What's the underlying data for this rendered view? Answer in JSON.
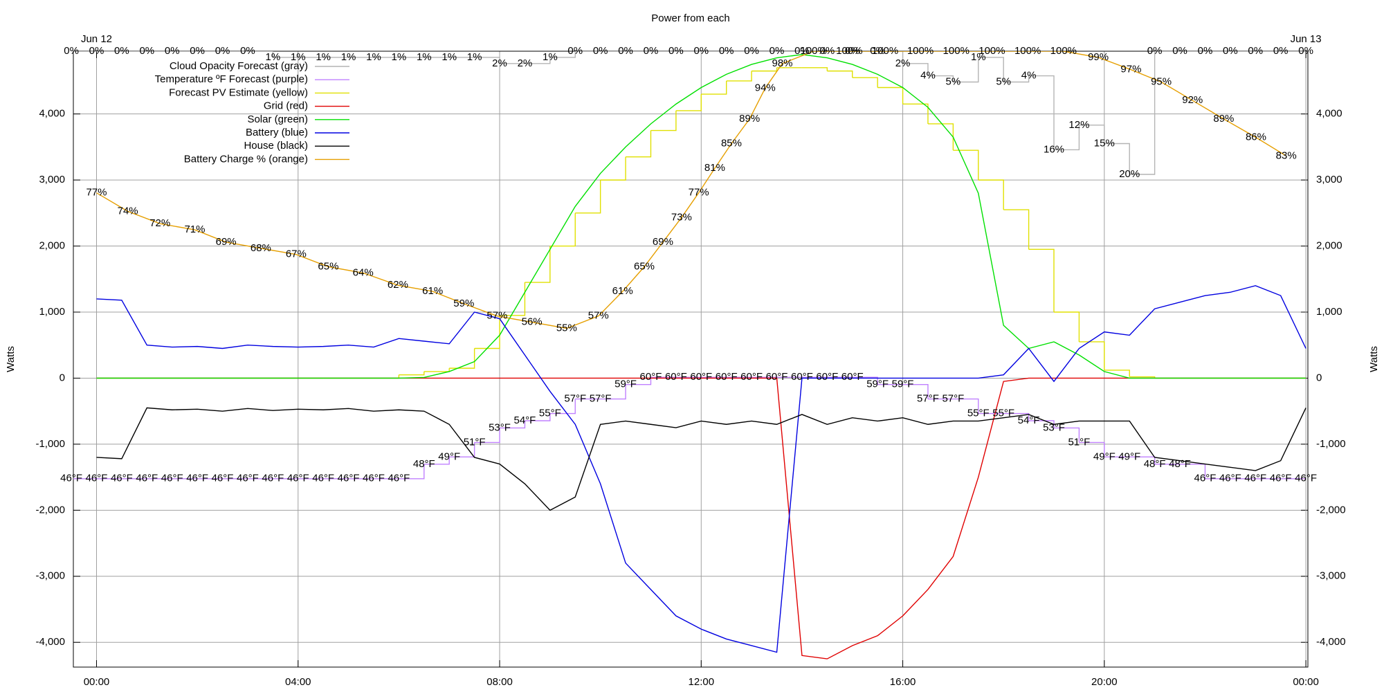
{
  "chart_data": {
    "type": "line",
    "title": "Power from each",
    "y_label": "Watts",
    "y2_label": "Watts",
    "xlim": [
      -0.46,
      24.04
    ],
    "xticks": [
      {
        "value": 0,
        "label": "00:00"
      },
      {
        "value": 4,
        "label": "04:00"
      },
      {
        "value": 8,
        "label": "08:00"
      },
      {
        "value": 12,
        "label": "12:00"
      },
      {
        "value": 16,
        "label": "16:00"
      },
      {
        "value": 20,
        "label": "20:00"
      },
      {
        "value": 24,
        "label": "00:00"
      }
    ],
    "x2ticks": [
      {
        "value": 0,
        "label": "Jun 12"
      },
      {
        "value": 24,
        "label": "Jun 13"
      }
    ],
    "ylim": [
      -4375,
      4950
    ],
    "yticks": [
      {
        "value": -4000,
        "label": "-4,000"
      },
      {
        "value": -3000,
        "label": "-3,000"
      },
      {
        "value": -2000,
        "label": "-2,000"
      },
      {
        "value": -1000,
        "label": "-1,000"
      },
      0,
      {
        "value": 1000,
        "label": "1,000"
      },
      {
        "value": 2000,
        "label": "2,000"
      },
      {
        "value": 3000,
        "label": "3,000"
      },
      {
        "value": 4000,
        "label": "4,000"
      }
    ],
    "grid": true,
    "legend": "top left",
    "series": [
      {
        "name": "Cloud Opacity Forecast (gray)",
        "color": "#b4b4b4",
        "label_color": "#b4b4b4",
        "step": true,
        "ylim": [
          100,
          0
        ],
        "x": [
          -0.5,
          0,
          0.5,
          1,
          1.5,
          2,
          2.5,
          3,
          3.5,
          4,
          4.5,
          5,
          5.5,
          6,
          6.5,
          7,
          7.5,
          8,
          8.5,
          9,
          9.5,
          10,
          10.5,
          11,
          11.5,
          12,
          12.5,
          13,
          13.5,
          14,
          14.5,
          15,
          15.5,
          16,
          16.5,
          17,
          17.5,
          18,
          18.5,
          19,
          19.5,
          20,
          20.5,
          21,
          21.5,
          22,
          22.5,
          23,
          23.5,
          24
        ],
        "values": [
          0,
          0,
          0,
          0,
          0,
          0,
          0,
          0,
          1,
          1,
          1,
          1,
          1,
          1,
          1,
          1,
          1,
          2,
          2,
          1,
          0,
          0,
          0,
          0,
          0,
          0,
          0,
          0,
          0,
          0,
          0,
          0,
          0,
          2,
          4,
          5,
          1,
          5,
          4,
          16,
          12,
          15,
          20,
          0,
          0,
          0,
          0,
          0,
          0,
          0
        ],
        "value_labels": [
          "0%",
          "0%",
          "0%",
          "0%",
          "0%",
          "0%",
          "0%",
          "0%",
          "1%",
          "1%",
          "1%",
          "1%",
          "1%",
          "1%",
          "1%",
          "1%",
          "1%",
          "2%",
          "2%",
          "1%",
          "0%",
          "0%",
          "0%",
          "0%",
          "0%",
          "0%",
          "0%",
          "0%",
          "0%",
          "0%",
          "0%",
          "0%",
          "0%",
          "2%",
          "4%",
          "5%",
          "1%",
          "5%",
          "4%",
          "16%",
          "12%",
          "15%",
          "20%",
          "0%",
          "0%",
          "0%",
          "0%",
          "0%",
          "0%",
          "0%"
        ]
      },
      {
        "name": "Temperature ºF Forecast (purple)",
        "color": "#c080ff",
        "label_color": "#c080ff",
        "step": true,
        "ylim": [
          20,
          105
        ],
        "x": [
          -0.5,
          0,
          0.5,
          1,
          1.5,
          2,
          2.5,
          3,
          3.5,
          4,
          4.5,
          5,
          5.5,
          6,
          6.5,
          7,
          7.5,
          8,
          8.5,
          9,
          9.5,
          10,
          10.5,
          11,
          11.5,
          12,
          12.5,
          13,
          13.5,
          14,
          14.5,
          15,
          15.5,
          16,
          16.5,
          17,
          17.5,
          18,
          18.5,
          19,
          19.5,
          20,
          20.5,
          21,
          21.5,
          22,
          22.5,
          23,
          23.5,
          24
        ],
        "values": [
          46,
          46,
          46,
          46,
          46,
          46,
          46,
          46,
          46,
          46,
          46,
          46,
          46,
          46,
          48,
          49,
          51,
          53,
          54,
          55,
          57,
          57,
          59,
          60,
          60,
          60,
          60,
          60,
          60,
          60,
          60,
          60,
          59,
          59,
          57,
          57,
          55,
          55,
          54,
          53,
          51,
          49,
          49,
          48,
          48,
          46,
          46,
          46,
          46,
          46
        ],
        "value_labels": [
          "46°F",
          "46°F",
          "46°F",
          "46°F",
          "46°F",
          "46°F",
          "46°F",
          "46°F",
          "46°F",
          "46°F",
          "46°F",
          "46°F",
          "46°F",
          "46°F",
          "48°F",
          "49°F",
          "51°F",
          "53°F",
          "54°F",
          "55°F",
          "57°F",
          "57°F",
          "59°F",
          "60°F",
          "60°F",
          "60°F",
          "60°F",
          "60°F",
          "60°F",
          "60°F",
          "60°F",
          "60°F",
          "59°F",
          "59°F",
          "57°F",
          "57°F",
          "55°F",
          "55°F",
          "54°F",
          "53°F",
          "51°F",
          "49°F",
          "49°F",
          "48°F",
          "48°F",
          "46°F",
          "46°F",
          "46°F",
          "46°F",
          "46°F"
        ]
      },
      {
        "name": "Forecast PV Estimate (yellow)",
        "color": "#e0e000",
        "step": true,
        "x": [
          0,
          0.5,
          1,
          1.5,
          2,
          2.5,
          3,
          3.5,
          4,
          4.5,
          5,
          5.5,
          6,
          6.5,
          7,
          7.5,
          8,
          8.5,
          9,
          9.5,
          10,
          10.5,
          11,
          11.5,
          12,
          12.5,
          13,
          13.5,
          14,
          14.5,
          15,
          15.5,
          16,
          16.5,
          17,
          17.5,
          18,
          18.5,
          19,
          19.5,
          20,
          20.5,
          21,
          21.5,
          22,
          22.5,
          23,
          23.5,
          24
        ],
        "values": [
          0,
          0,
          0,
          0,
          0,
          0,
          0,
          0,
          0,
          0,
          0,
          0,
          50,
          100,
          150,
          450,
          950,
          1450,
          2000,
          2500,
          3000,
          3350,
          3750,
          4050,
          4300,
          4500,
          4650,
          4700,
          4700,
          4650,
          4550,
          4400,
          4150,
          3850,
          3450,
          3000,
          2550,
          1950,
          1000,
          550,
          120,
          20,
          0,
          0,
          0,
          0,
          0,
          0,
          0
        ]
      },
      {
        "name": "Grid (red)",
        "color": "#e00000",
        "x": [
          0,
          0.5,
          1,
          1.5,
          2,
          2.5,
          3,
          3.5,
          4,
          4.5,
          5,
          5.5,
          6,
          6.5,
          7,
          7.5,
          8,
          8.5,
          9,
          9.5,
          10,
          10.5,
          11,
          11.5,
          12,
          12.5,
          13,
          13.5,
          14,
          14.5,
          15,
          15.5,
          16,
          16.5,
          17,
          17.5,
          18,
          18.5,
          19,
          19.5,
          20,
          20.5,
          21,
          21.5,
          22,
          22.5,
          23,
          23.5,
          24
        ],
        "values": [
          0,
          0,
          0,
          0,
          0,
          0,
          0,
          0,
          0,
          0,
          0,
          0,
          0,
          0,
          0,
          0,
          0,
          0,
          0,
          0,
          0,
          0,
          0,
          0,
          0,
          0,
          0,
          0,
          -4200,
          -4250,
          -4050,
          -3900,
          -3600,
          -3200,
          -2700,
          -1500,
          -50,
          0,
          0,
          0,
          0,
          0,
          0,
          0,
          0,
          0,
          0,
          0,
          0
        ]
      },
      {
        "name": "Solar (green)",
        "color": "#00e000",
        "x": [
          0,
          0.5,
          1,
          1.5,
          2,
          2.5,
          3,
          3.5,
          4,
          4.5,
          5,
          5.5,
          6,
          6.5,
          7,
          7.5,
          8,
          8.5,
          9,
          9.5,
          10,
          10.5,
          11,
          11.5,
          12,
          12.5,
          13,
          13.5,
          14,
          14.5,
          15,
          15.5,
          16,
          16.5,
          17,
          17.5,
          18,
          18.5,
          19,
          19.5,
          20,
          20.5,
          21,
          21.5,
          22,
          22.5,
          23,
          23.5,
          24
        ],
        "values": [
          0,
          0,
          0,
          0,
          0,
          0,
          0,
          0,
          0,
          0,
          0,
          0,
          0,
          10,
          100,
          250,
          650,
          1300,
          1950,
          2600,
          3100,
          3500,
          3850,
          4150,
          4400,
          4600,
          4750,
          4850,
          4900,
          4850,
          4750,
          4600,
          4400,
          4100,
          3650,
          2800,
          800,
          450,
          550,
          350,
          100,
          0,
          0,
          0,
          0,
          0,
          0,
          0,
          0
        ]
      },
      {
        "name": "Battery (blue)",
        "color": "#0000e0",
        "x": [
          0,
          0.5,
          1,
          1.5,
          2,
          2.5,
          3,
          3.5,
          4,
          4.5,
          5,
          5.5,
          6,
          6.5,
          7,
          7.5,
          8,
          8.5,
          9,
          9.5,
          10,
          10.5,
          11,
          11.5,
          12,
          12.5,
          13,
          13.5,
          14,
          14.5,
          15,
          15.5,
          16,
          16.5,
          17,
          17.5,
          18,
          18.5,
          19,
          19.5,
          20,
          20.5,
          21,
          21.5,
          22,
          22.5,
          23,
          23.5,
          24
        ],
        "values": [
          1200,
          1180,
          500,
          470,
          480,
          450,
          500,
          480,
          470,
          480,
          500,
          470,
          600,
          560,
          520,
          1000,
          900,
          350,
          -200,
          -700,
          -1600,
          -2800,
          -3200,
          -3600,
          -3800,
          -3950,
          -4050,
          -4150,
          0,
          0,
          0,
          0,
          0,
          0,
          0,
          0,
          50,
          450,
          -50,
          450,
          700,
          650,
          1050,
          1150,
          1250,
          1300,
          1400,
          1250,
          450
        ]
      },
      {
        "name": "House (black)",
        "color": "#000000",
        "x": [
          0,
          0.5,
          1,
          1.5,
          2,
          2.5,
          3,
          3.5,
          4,
          4.5,
          5,
          5.5,
          6,
          6.5,
          7,
          7.5,
          8,
          8.5,
          9,
          9.5,
          10,
          10.5,
          11,
          11.5,
          12,
          12.5,
          13,
          13.5,
          14,
          14.5,
          15,
          15.5,
          16,
          16.5,
          17,
          17.5,
          18,
          18.5,
          19,
          19.5,
          20,
          20.5,
          21,
          21.5,
          22,
          22.5,
          23,
          23.5,
          24
        ],
        "values": [
          -1200,
          -1220,
          -450,
          -480,
          -470,
          -500,
          -460,
          -490,
          -470,
          -480,
          -460,
          -500,
          -480,
          -500,
          -700,
          -1200,
          -1300,
          -1600,
          -2000,
          -1800,
          -700,
          -650,
          -700,
          -750,
          -650,
          -700,
          -650,
          -700,
          -550,
          -700,
          -600,
          -650,
          -600,
          -700,
          -650,
          -650,
          -600,
          -550,
          -700,
          -650,
          -650,
          -650,
          -1200,
          -1250,
          -1300,
          -1350,
          -1400,
          -1250,
          -450
        ]
      },
      {
        "name": "Battery Charge % (orange)",
        "color": "#e69f00",
        "label_color": "#7f3f00",
        "ylim": [
          0,
          100
        ],
        "x": [
          0,
          0.62,
          1.26,
          1.95,
          2.57,
          3.26,
          3.96,
          4.6,
          5.29,
          5.98,
          6.67,
          7.29,
          7.95,
          8.64,
          9.33,
          9.96,
          10.44,
          10.87,
          11.24,
          11.61,
          11.95,
          12.27,
          12.6,
          12.96,
          13.27,
          13.61,
          14.23,
          14.94,
          15.65,
          16.35,
          17.06,
          17.77,
          18.48,
          19.19,
          19.88,
          20.53,
          21.13,
          21.75,
          22.37,
          23.01,
          23.61
        ],
        "values": [
          77,
          74,
          72,
          71,
          69,
          68,
          67,
          65,
          64,
          62,
          61,
          59,
          57,
          56,
          55,
          57,
          61,
          65,
          69,
          73,
          77,
          81,
          85,
          89,
          94,
          98,
          100,
          100,
          100,
          100,
          100,
          100,
          100,
          100,
          99,
          97,
          95,
          92,
          89,
          86,
          83
        ],
        "value_labels": [
          "77%",
          "74%",
          "72%",
          "71%",
          "69%",
          "68%",
          "67%",
          "65%",
          "64%",
          "62%",
          "61%",
          "59%",
          "57%",
          "56%",
          "55%",
          "57%",
          "61%",
          "65%",
          "69%",
          "73%",
          "77%",
          "81%",
          "85%",
          "89%",
          "94%",
          "98%",
          "100%",
          "100%",
          "100%",
          "100%",
          "100%",
          "100%",
          "100%",
          "100%",
          "99%",
          "97%",
          "95%",
          "92%",
          "89%",
          "86%",
          "83%"
        ]
      }
    ]
  }
}
